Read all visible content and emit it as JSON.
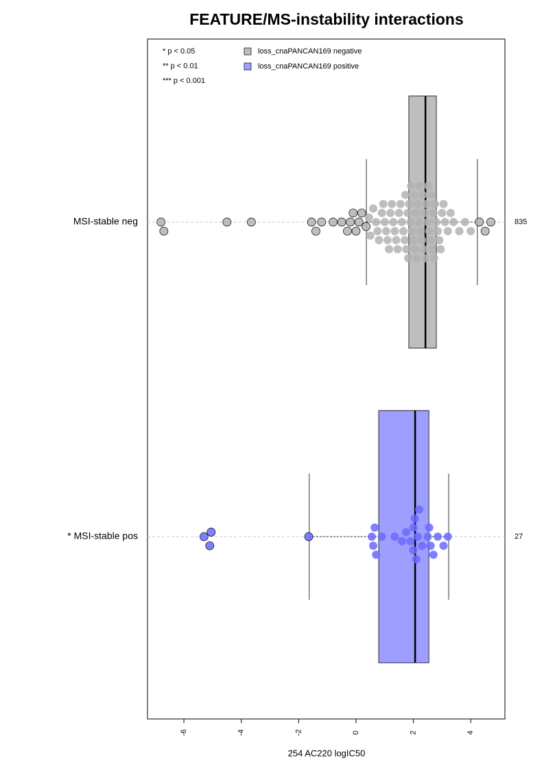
{
  "chart_data": {
    "type": "boxplot",
    "title": "FEATURE/MS-instability interactions",
    "xlabel": "254 AC220 logIC50",
    "xlim": [
      -7.27,
      5.19
    ],
    "xticks": [
      -6,
      -4,
      -2,
      0,
      2,
      4
    ],
    "categories": [
      "MSI-stable neg",
      "* MSI-stable pos"
    ],
    "counts": [
      835,
      27
    ],
    "significance_notes": [
      "* p < 0.05",
      "** p < 0.01",
      "*** p < 0.001"
    ],
    "grid": true,
    "series": [
      {
        "name": "loss_cnaPANCAN169 negative",
        "color": "#bebebe",
        "point_color": "#b3b3b3",
        "box": {
          "whisker_low": 0.36,
          "q1": 1.84,
          "median": 2.42,
          "q3": 2.8,
          "whisker_high": 4.23
        },
        "points": [
          -6.8,
          -6.7,
          -4.5,
          -3.65,
          -1.55,
          -1.4,
          -1.2,
          -0.8,
          -0.5,
          -0.3,
          -0.2,
          -0.1,
          0.0,
          0.1,
          0.2,
          0.35,
          0.45,
          0.5,
          0.6,
          0.7,
          0.75,
          0.8,
          0.9,
          0.95,
          1.0,
          1.05,
          1.1,
          1.15,
          1.2,
          1.25,
          1.3,
          1.35,
          1.4,
          1.45,
          1.5,
          1.55,
          1.6,
          1.65,
          1.7,
          1.72,
          1.75,
          1.8,
          1.82,
          1.85,
          1.9,
          1.92,
          1.95,
          2.0,
          2.02,
          2.05,
          2.1,
          2.12,
          2.15,
          2.2,
          2.22,
          2.25,
          2.3,
          2.32,
          2.35,
          2.4,
          2.42,
          2.45,
          2.5,
          2.52,
          2.55,
          2.6,
          2.62,
          2.65,
          2.7,
          2.72,
          2.75,
          2.8,
          2.85,
          2.9,
          2.95,
          3.0,
          3.05,
          3.1,
          3.2,
          3.3,
          3.4,
          3.6,
          3.8,
          4.0,
          4.3,
          4.5,
          4.7
        ]
      },
      {
        "name": "loss_cnaPANCAN169 positive",
        "color": "#9e9eff",
        "point_color": "#6a6aff",
        "box": {
          "whisker_low": -1.63,
          "q1": 0.79,
          "median": 2.06,
          "q3": 2.54,
          "whisker_high": 3.23
        },
        "points": [
          -5.3,
          -5.1,
          -5.05,
          -1.65,
          0.55,
          0.6,
          0.65,
          0.7,
          0.9,
          1.35,
          1.6,
          1.75,
          1.9,
          2.0,
          2.0,
          2.05,
          2.1,
          2.15,
          2.2,
          2.3,
          2.5,
          2.55,
          2.6,
          2.7,
          2.85,
          3.05,
          3.2
        ]
      }
    ]
  }
}
